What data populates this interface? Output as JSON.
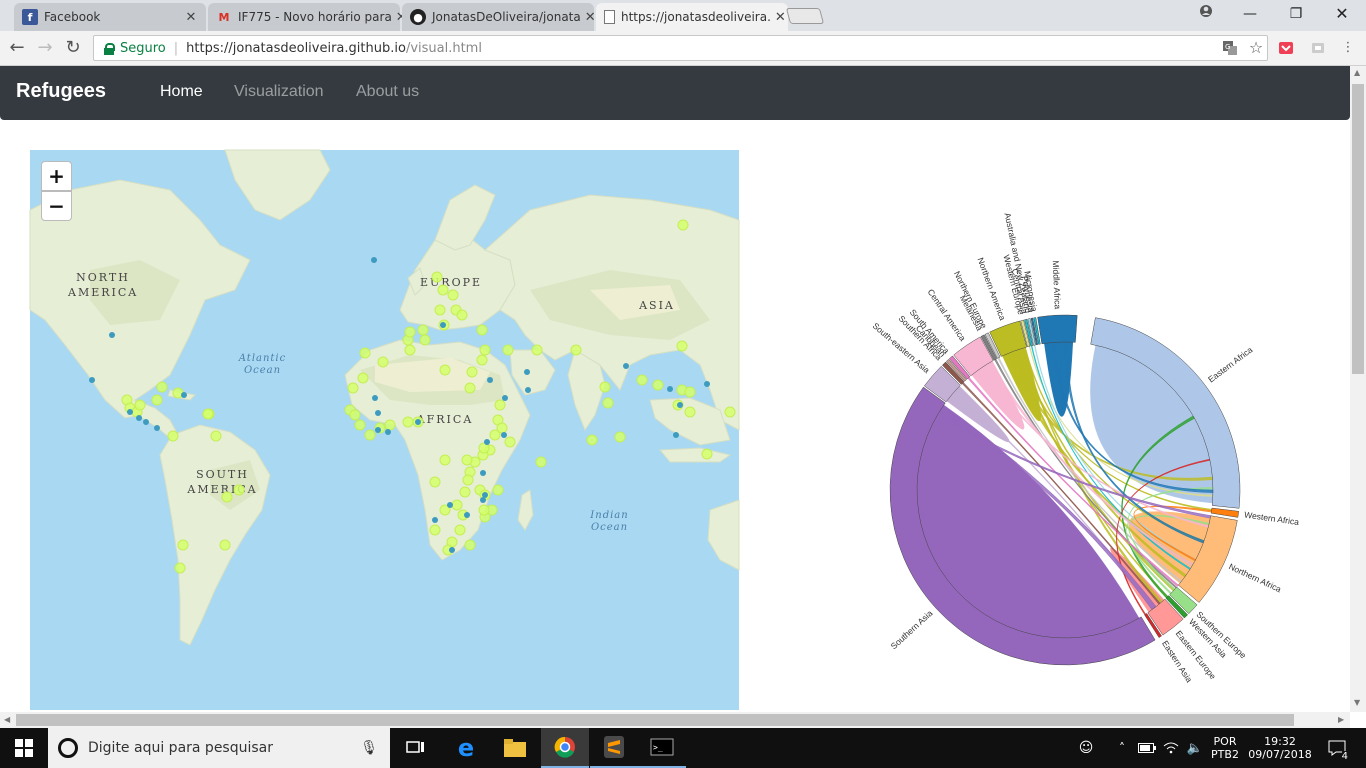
{
  "browser": {
    "tabs": [
      {
        "title": "Facebook",
        "icon": "facebook-icon"
      },
      {
        "title": "IF775 - Novo horário para",
        "icon": "gmail-icon"
      },
      {
        "title": "JonatasDeOliveira/jonata",
        "icon": "github-icon"
      },
      {
        "title": "https://jonatasdeoliveira.",
        "icon": "page-icon",
        "active": true
      }
    ],
    "security_label": "Seguro",
    "url_host": "https://jonatasdeoliveira.github.io",
    "url_path": "/visual.html"
  },
  "navbar": {
    "brand": "Refugees",
    "links": [
      {
        "label": "Home",
        "active": true
      },
      {
        "label": "Visualization",
        "active": false
      },
      {
        "label": "About us",
        "active": false
      }
    ]
  },
  "map": {
    "zoom_in": "+",
    "zoom_out": "−",
    "continents": [
      {
        "id": "north-america",
        "label": "NORTH\nAMERICA"
      },
      {
        "id": "europe",
        "label": "EUROPE"
      },
      {
        "id": "asia",
        "label": "ASIA"
      },
      {
        "id": "africa",
        "label": "AFRICA"
      },
      {
        "id": "south-america",
        "label": "SOUTH\nAMERICA"
      }
    ],
    "oceans": [
      {
        "id": "atlantic",
        "label": "Atlantic\nOcean"
      },
      {
        "id": "indian",
        "label": "Indian\nOcean"
      }
    ],
    "marker_colors": {
      "origin": "#d4ff6b",
      "destination": "#3d9bbf"
    }
  },
  "chord_chart": {
    "regions": [
      {
        "name": "Eastern Africa",
        "color": "#aec7e8"
      },
      {
        "name": "Western Africa",
        "color": "#ff7f0e"
      },
      {
        "name": "Northern Africa",
        "color": "#ffbb78"
      },
      {
        "name": "Southern Europe",
        "color": "#98df8a"
      },
      {
        "name": "Western Asia",
        "color": "#2ca02c"
      },
      {
        "name": "Eastern Europe",
        "color": "#ff9896"
      },
      {
        "name": "Eastern Asia",
        "color": "#d62728"
      },
      {
        "name": "Southern Asia",
        "color": "#9467bd"
      },
      {
        "name": "South-eastern Asia",
        "color": "#c5b0d5"
      },
      {
        "name": "Southern Africa",
        "color": "#8c564b"
      },
      {
        "name": "Caribbean",
        "color": "#c49c94"
      },
      {
        "name": "South America",
        "color": "#e377c2"
      },
      {
        "name": "Central America",
        "color": "#f7b6d2"
      },
      {
        "name": "Melanesia",
        "color": "#7f7f7f"
      },
      {
        "name": "Northern Europe",
        "color": "#c7c7c7"
      },
      {
        "name": "Northern America",
        "color": "#bcbd22"
      },
      {
        "name": "Western Europe",
        "color": "#dbdb8d"
      },
      {
        "name": "Central Asia",
        "color": "#17becf"
      },
      {
        "name": "Australia and New Zealand",
        "color": "#9edae5"
      },
      {
        "name": "Polynesia",
        "color": "#1f77b4"
      },
      {
        "name": "Micronesia",
        "color": "#17becf"
      },
      {
        "name": "Middle Africa",
        "color": "#1f77b4"
      }
    ]
  },
  "taskbar": {
    "search_placeholder": "Digite aqui para pesquisar",
    "language": "POR",
    "keyboard": "PTB2",
    "time": "19:32",
    "date": "09/07/2018",
    "notifications": "4"
  }
}
